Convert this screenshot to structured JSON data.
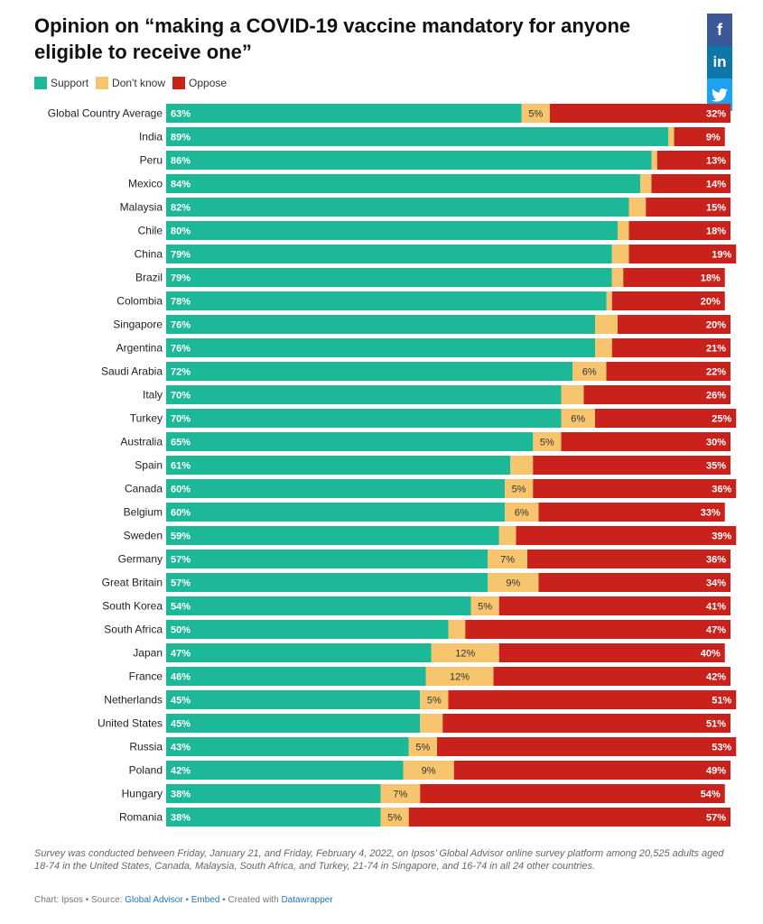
{
  "title": "Opinion on “making a COVID-19 vaccine mandatory for anyone eligible to receive one”",
  "legend": [
    {
      "label": "Support",
      "color": "#1db897"
    },
    {
      "label": "Don't know",
      "color": "#f7c56e"
    },
    {
      "label": "Oppose",
      "color": "#c9221c"
    }
  ],
  "share": {
    "facebook": {
      "glyph": "f",
      "icon": "facebook-icon",
      "color": "#3b5998"
    },
    "linkedin": {
      "glyph": "in",
      "icon": "linkedin-icon",
      "color": "#0e76a8"
    },
    "twitter": {
      "glyph": "🐦",
      "icon": "twitter-icon",
      "color": "#1da1f2"
    }
  },
  "chart_data": {
    "type": "bar",
    "orientation": "horizontal-stacked",
    "categories": [
      "Global Country Average",
      "India",
      "Peru",
      "Mexico",
      "Malaysia",
      "Chile",
      "China",
      "Brazil",
      "Colombia",
      "Singapore",
      "Argentina",
      "Saudi Arabia",
      "Italy",
      "Turkey",
      "Australia",
      "Spain",
      "Canada",
      "Belgium",
      "Sweden",
      "Germany",
      "Great Britain",
      "South Korea",
      "South Africa",
      "Japan",
      "France",
      "Netherlands",
      "United States",
      "Russia",
      "Poland",
      "Hungary",
      "Romania"
    ],
    "series": [
      {
        "name": "Support",
        "color": "#1db897",
        "values": [
          63,
          89,
          86,
          84,
          82,
          80,
          79,
          79,
          78,
          76,
          76,
          72,
          70,
          70,
          65,
          61,
          60,
          60,
          59,
          57,
          57,
          54,
          50,
          47,
          46,
          45,
          45,
          43,
          42,
          38,
          38
        ]
      },
      {
        "name": "Don't know",
        "color": "#f7c56e",
        "values": [
          5,
          1,
          1,
          2,
          3,
          2,
          3,
          2,
          1,
          4,
          3,
          6,
          4,
          6,
          5,
          4,
          5,
          6,
          3,
          7,
          9,
          5,
          3,
          12,
          12,
          5,
          4,
          5,
          9,
          7,
          5
        ]
      },
      {
        "name": "Oppose",
        "color": "#c9221c",
        "values": [
          32,
          9,
          13,
          14,
          15,
          18,
          19,
          18,
          20,
          20,
          21,
          22,
          26,
          25,
          30,
          35,
          36,
          33,
          39,
          36,
          34,
          41,
          47,
          40,
          42,
          51,
          51,
          53,
          49,
          54,
          57
        ]
      }
    ],
    "labels": {
      "support": [
        "63%",
        "89%",
        "86%",
        "84%",
        "82%",
        "80%",
        "79%",
        "79%",
        "78%",
        "76%",
        "76%",
        "72%",
        "70%",
        "70%",
        "65%",
        "61%",
        "60%",
        "60%",
        "59%",
        "57%",
        "57%",
        "54%",
        "50%",
        "47%",
        "46%",
        "45%",
        "45%",
        "43%",
        "42%",
        "38%",
        "38%"
      ],
      "dont_know": [
        "5%",
        "",
        "",
        "",
        "",
        "",
        "",
        "",
        "",
        "",
        "",
        "6%",
        "",
        "6%",
        "5%",
        "",
        "5%",
        "6%",
        "",
        "7%",
        "9%",
        "5%",
        "",
        "12%",
        "12%",
        "5%",
        "",
        "5%",
        "9%",
        "7%",
        "5%"
      ],
      "oppose": [
        "32%",
        "9%",
        "13%",
        "14%",
        "15%",
        "18%",
        "19%",
        "18%",
        "20%",
        "20%",
        "21%",
        "22%",
        "26%",
        "25%",
        "30%",
        "35%",
        "36%",
        "33%",
        "39%",
        "36%",
        "34%",
        "41%",
        "47%",
        "40%",
        "42%",
        "51%",
        "51%",
        "53%",
        "49%",
        "54%",
        "57%"
      ]
    }
  },
  "footnote": "Survey was conducted between Friday, January 21, and Friday, February 4, 2022, on Ipsos’ Global Advisor online survey platform among 20,525 adults aged 18-74 in the United States, Canada, Malaysia, South Africa, and Turkey, 21-74 in Singapore, and 16-74 in all 24 other countries.",
  "credits": {
    "chart_prefix": "Chart: Ipsos • Source: ",
    "source_link": "Global Advisor",
    "sep1": " • ",
    "embed_link": "Embed",
    "sep2": " • Created with ",
    "datawrapper_link": "Datawrapper"
  }
}
